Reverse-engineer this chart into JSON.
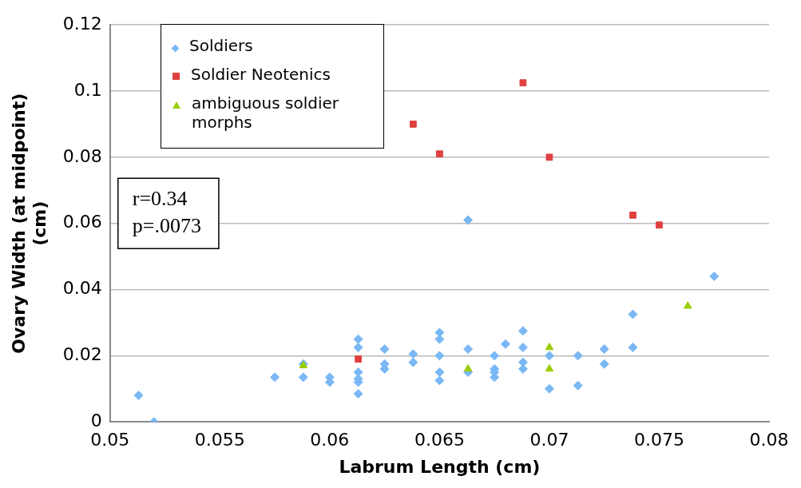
{
  "chart_data": {
    "type": "scatter",
    "xlabel": "Labrum Length (cm)",
    "ylabel": "Ovary Width (at midpoint) (cm)",
    "xlim": [
      0.05,
      0.08
    ],
    "xticks": [
      0.05,
      0.055,
      0.06,
      0.065,
      0.07,
      0.075,
      0.08
    ],
    "ylim": [
      0,
      0.12
    ],
    "yticks": [
      0,
      0.02,
      0.04,
      0.06,
      0.08,
      0.1,
      0.12
    ],
    "grid": "y",
    "legend": "top left",
    "annotations": [
      "r=0.34\np=.0073"
    ],
    "series": [
      {
        "name": "Soldiers",
        "color": "#7ab8f5",
        "marker": "diamond",
        "x": [
          0.0513,
          0.052,
          0.0575,
          0.0588,
          0.0588,
          0.06,
          0.06,
          0.0613,
          0.0613,
          0.0613,
          0.0613,
          0.0613,
          0.0613,
          0.0625,
          0.0625,
          0.0625,
          0.0638,
          0.0638,
          0.065,
          0.065,
          0.065,
          0.065,
          0.065,
          0.0663,
          0.0663,
          0.0663,
          0.0675,
          0.0675,
          0.0675,
          0.0675,
          0.068,
          0.0688,
          0.0688,
          0.0688,
          0.0688,
          0.07,
          0.07,
          0.0713,
          0.0713,
          0.0725,
          0.0725,
          0.0738,
          0.0738,
          0.0775
        ],
        "values": [
          0.008,
          0,
          0.0135,
          0.0175,
          0.0135,
          0.0135,
          0.012,
          0.025,
          0.0225,
          0.015,
          0.013,
          0.012,
          0.0085,
          0.022,
          0.0175,
          0.016,
          0.0205,
          0.018,
          0.027,
          0.025,
          0.02,
          0.015,
          0.0125,
          0.061,
          0.022,
          0.015,
          0.02,
          0.016,
          0.015,
          0.0135,
          0.0235,
          0.0275,
          0.0225,
          0.018,
          0.016,
          0.02,
          0.01,
          0.02,
          0.011,
          0.022,
          0.0175,
          0.0325,
          0.0225,
          0.044
        ]
      },
      {
        "name": "Soldier Neotenics",
        "color": "#e04040",
        "marker": "square",
        "x": [
          0.0613,
          0.0638,
          0.065,
          0.0688,
          0.07,
          0.0738,
          0.075
        ],
        "values": [
          0.019,
          0.09,
          0.081,
          0.1025,
          0.08,
          0.0625,
          0.0595
        ]
      },
      {
        "name": "ambiguous soldier morphs",
        "color": "#9acd00",
        "marker": "triangle",
        "x": [
          0.0588,
          0.0663,
          0.07,
          0.07,
          0.0763
        ],
        "values": [
          0.017,
          0.016,
          0.0225,
          0.016,
          0.035
        ]
      }
    ]
  }
}
